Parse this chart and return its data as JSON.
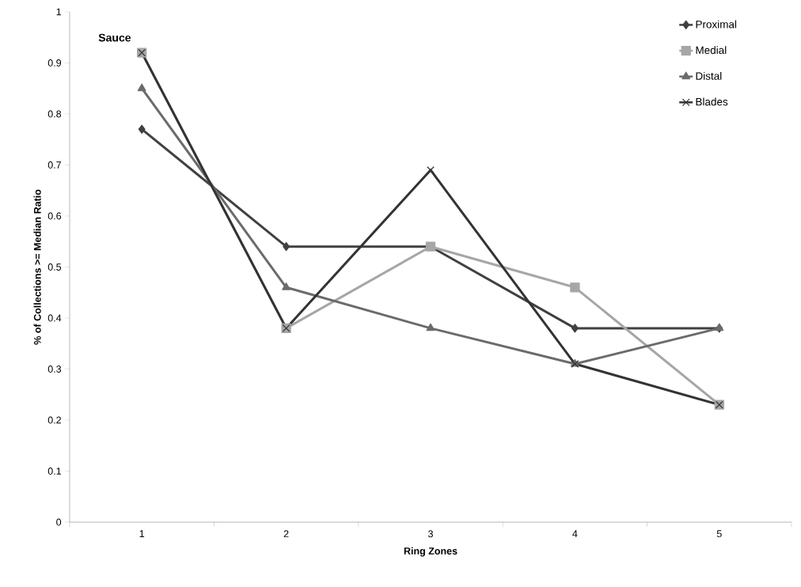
{
  "chart_data": {
    "type": "line",
    "xlabel": "Ring Zones",
    "ylabel": "% of Collections >= Median Ratio",
    "annotations": [
      "Sauce"
    ],
    "categories": [
      "1",
      "2",
      "3",
      "4",
      "5"
    ],
    "series": [
      {
        "name": "Proximal",
        "color": "#404040",
        "marker": "diamond",
        "values": [
          0.77,
          0.54,
          0.54,
          0.38,
          0.38
        ]
      },
      {
        "name": "Medial",
        "color": "#a6a6a6",
        "marker": "square",
        "values": [
          0.92,
          0.38,
          0.54,
          0.46,
          0.23
        ]
      },
      {
        "name": "Distal",
        "color": "#6b6b6b",
        "marker": "triangle",
        "values": [
          0.85,
          0.46,
          0.38,
          0.31,
          0.38
        ]
      },
      {
        "name": "Blades",
        "color": "#333333",
        "marker": "cross",
        "values": [
          0.92,
          0.38,
          0.69,
          0.31,
          0.23
        ]
      }
    ],
    "ylim": [
      0,
      1
    ],
    "yticks": [
      0,
      0.1,
      0.2,
      0.3,
      0.4,
      0.5,
      0.6,
      0.7,
      0.8,
      0.9,
      1
    ],
    "grid": false,
    "legend": "top right",
    "line_style": "solid"
  }
}
